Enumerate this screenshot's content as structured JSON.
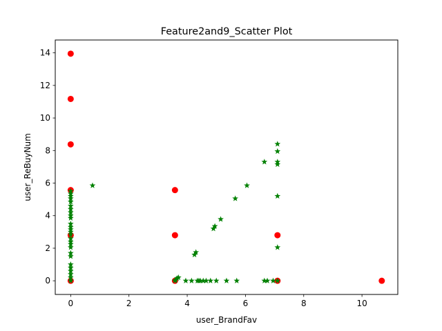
{
  "chart_data": {
    "type": "scatter",
    "title": "Feature2and9_Scatter Plot",
    "xlabel": "user_BrandFav",
    "ylabel": "user_ReBuyNum",
    "xlim": [
      -0.53,
      11.23
    ],
    "ylim": [
      -0.84,
      14.79
    ],
    "xticks": [
      0,
      2,
      4,
      6,
      8,
      10
    ],
    "yticks": [
      0,
      2,
      4,
      6,
      8,
      10,
      12,
      14
    ],
    "grid": false,
    "legend": "none",
    "series": [
      {
        "marker": "circle",
        "color": "#ff0000",
        "points": [
          [
            0,
            13.95
          ],
          [
            0,
            11.17
          ],
          [
            0,
            8.38
          ],
          [
            0,
            5.57
          ],
          [
            0,
            2.8
          ],
          [
            0,
            0
          ],
          [
            3.58,
            5.57
          ],
          [
            3.58,
            2.8
          ],
          [
            3.58,
            0
          ],
          [
            7.1,
            2.8
          ],
          [
            7.1,
            0
          ],
          [
            10.68,
            0
          ]
        ]
      },
      {
        "marker": "star",
        "color": "#008000",
        "points": [
          [
            0,
            5.5
          ],
          [
            0,
            5.35
          ],
          [
            0,
            5.2
          ],
          [
            0,
            5.05
          ],
          [
            0,
            4.85
          ],
          [
            0,
            4.6
          ],
          [
            0,
            4.4
          ],
          [
            0,
            4.2
          ],
          [
            0,
            4.0
          ],
          [
            0,
            3.85
          ],
          [
            0,
            3.5
          ],
          [
            0,
            3.3
          ],
          [
            0,
            3.15
          ],
          [
            0,
            3.0
          ],
          [
            0,
            2.85
          ],
          [
            0,
            2.6
          ],
          [
            0,
            2.4
          ],
          [
            0,
            2.25
          ],
          [
            0,
            2.05
          ],
          [
            0,
            1.7
          ],
          [
            0,
            1.5
          ],
          [
            0,
            1.0
          ],
          [
            0,
            0.8
          ],
          [
            0,
            0.6
          ],
          [
            0,
            0.4
          ],
          [
            0,
            0.2
          ],
          [
            0,
            0
          ],
          [
            0.75,
            5.85
          ],
          [
            3.58,
            0
          ],
          [
            3.6,
            0.05
          ],
          [
            3.65,
            0.15
          ],
          [
            3.7,
            0.2
          ],
          [
            3.95,
            0
          ],
          [
            4.15,
            0
          ],
          [
            4.25,
            1.6
          ],
          [
            4.3,
            1.75
          ],
          [
            4.35,
            0
          ],
          [
            4.4,
            0
          ],
          [
            4.45,
            0
          ],
          [
            4.55,
            0
          ],
          [
            4.65,
            0
          ],
          [
            4.8,
            0
          ],
          [
            4.9,
            3.2
          ],
          [
            4.95,
            3.35
          ],
          [
            5.0,
            0
          ],
          [
            5.15,
            3.78
          ],
          [
            5.35,
            0
          ],
          [
            5.65,
            5.05
          ],
          [
            5.7,
            0
          ],
          [
            6.05,
            5.85
          ],
          [
            6.65,
            0
          ],
          [
            6.65,
            7.3
          ],
          [
            6.75,
            0
          ],
          [
            6.95,
            0
          ],
          [
            7.1,
            0
          ],
          [
            7.1,
            2.05
          ],
          [
            7.1,
            5.2
          ],
          [
            7.1,
            7.15
          ],
          [
            7.1,
            7.3
          ],
          [
            7.1,
            7.95
          ],
          [
            7.1,
            8.4
          ]
        ]
      }
    ]
  }
}
